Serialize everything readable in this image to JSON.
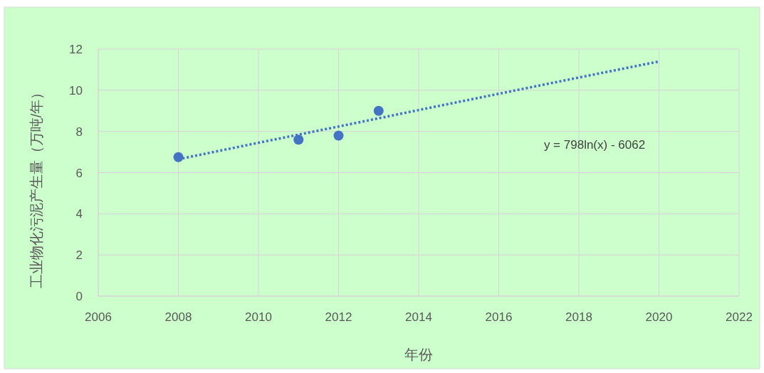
{
  "chart_data": {
    "type": "scatter",
    "xlabel": "年份",
    "ylabel": "工业物化污泥产生量（万吨/年）",
    "xlim": [
      2006,
      2022
    ],
    "xticks": [
      2006,
      2008,
      2010,
      2012,
      2014,
      2016,
      2018,
      2020,
      2022
    ],
    "ylim": [
      0,
      12
    ],
    "yticks": [
      0,
      2,
      4,
      6,
      8,
      10,
      12
    ],
    "grid": true,
    "series": [
      {
        "color": "#4472c4",
        "marker": "circle",
        "x": [
          2008,
          2011,
          2012,
          2013
        ],
        "values": [
          6.75,
          7.6,
          7.8,
          9.0
        ]
      },
      {
        "type": "line",
        "color": "#4472c4",
        "line_style": "dotted",
        "marker": "none",
        "x": [
          2008,
          2010,
          2012,
          2014,
          2016,
          2018,
          2020
        ],
        "values": [
          6.65,
          7.45,
          8.24,
          9.04,
          9.83,
          10.62,
          11.4
        ]
      }
    ],
    "annotations": [
      "y = 798ln(x) - 6062"
    ]
  }
}
